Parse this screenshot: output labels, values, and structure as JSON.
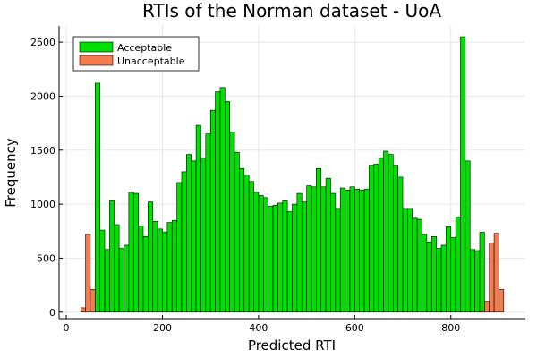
{
  "chart_data": {
    "type": "bar",
    "title": "RTIs of the Norman dataset - UoA",
    "xlabel": "Predicted RTI",
    "ylabel": "Frequency",
    "xlim": [
      -15,
      955
    ],
    "ylim": [
      -60,
      2650
    ],
    "xticks": [
      0,
      200,
      400,
      600,
      800
    ],
    "yticks": [
      0,
      500,
      1000,
      1500,
      2000,
      2500
    ],
    "xtick_labels": [
      "0",
      "200",
      "400",
      "600",
      "800"
    ],
    "ytick_labels": [
      "0",
      "500",
      "1000",
      "1500",
      "2000",
      "2500"
    ],
    "grid": true,
    "legend_position": "top-left",
    "bin_width": 10,
    "series": [
      {
        "name": "Acceptable",
        "color": "#00e000",
        "bins": [
          [
            60,
            2120
          ],
          [
            70,
            760
          ],
          [
            80,
            580
          ],
          [
            90,
            1030
          ],
          [
            100,
            810
          ],
          [
            110,
            590
          ],
          [
            120,
            620
          ],
          [
            130,
            1110
          ],
          [
            140,
            1100
          ],
          [
            150,
            800
          ],
          [
            160,
            700
          ],
          [
            170,
            1020
          ],
          [
            180,
            840
          ],
          [
            190,
            770
          ],
          [
            200,
            740
          ],
          [
            210,
            830
          ],
          [
            220,
            850
          ],
          [
            230,
            1200
          ],
          [
            240,
            1300
          ],
          [
            250,
            1460
          ],
          [
            260,
            1400
          ],
          [
            270,
            1730
          ],
          [
            280,
            1430
          ],
          [
            290,
            1650
          ],
          [
            300,
            1870
          ],
          [
            310,
            2040
          ],
          [
            320,
            2080
          ],
          [
            330,
            1950
          ],
          [
            340,
            1670
          ],
          [
            350,
            1480
          ],
          [
            360,
            1330
          ],
          [
            370,
            1270
          ],
          [
            380,
            1210
          ],
          [
            390,
            1110
          ],
          [
            400,
            1080
          ],
          [
            410,
            1060
          ],
          [
            420,
            980
          ],
          [
            430,
            990
          ],
          [
            440,
            1010
          ],
          [
            450,
            1030
          ],
          [
            460,
            930
          ],
          [
            470,
            1000
          ],
          [
            480,
            1100
          ],
          [
            490,
            1020
          ],
          [
            500,
            1170
          ],
          [
            510,
            1160
          ],
          [
            520,
            1330
          ],
          [
            530,
            1160
          ],
          [
            540,
            1240
          ],
          [
            550,
            1100
          ],
          [
            560,
            960
          ],
          [
            570,
            1150
          ],
          [
            580,
            1130
          ],
          [
            590,
            1160
          ],
          [
            600,
            1140
          ],
          [
            610,
            1130
          ],
          [
            620,
            1140
          ],
          [
            630,
            1360
          ],
          [
            640,
            1370
          ],
          [
            650,
            1430
          ],
          [
            660,
            1490
          ],
          [
            670,
            1460
          ],
          [
            680,
            1360
          ],
          [
            690,
            1250
          ],
          [
            700,
            960
          ],
          [
            710,
            960
          ],
          [
            720,
            870
          ],
          [
            730,
            860
          ],
          [
            740,
            720
          ],
          [
            750,
            650
          ],
          [
            760,
            700
          ],
          [
            770,
            590
          ],
          [
            780,
            620
          ],
          [
            790,
            790
          ],
          [
            800,
            690
          ],
          [
            810,
            880
          ],
          [
            820,
            2550
          ],
          [
            830,
            1400
          ],
          [
            840,
            580
          ],
          [
            850,
            570
          ],
          [
            860,
            740
          ]
        ]
      },
      {
        "name": "Unacceptable",
        "color": "#f47c4e",
        "bins": [
          [
            30,
            40
          ],
          [
            40,
            720
          ],
          [
            50,
            210
          ],
          [
            860,
            10
          ],
          [
            870,
            100
          ],
          [
            880,
            640
          ],
          [
            890,
            730
          ],
          [
            900,
            210
          ]
        ]
      }
    ]
  }
}
